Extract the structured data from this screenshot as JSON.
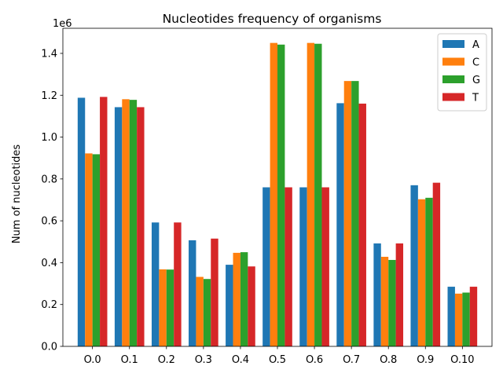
{
  "chart_data": {
    "type": "bar",
    "title": "Nucleotides frequency of organisms",
    "xlabel": "",
    "ylabel": "Num of nucleotides",
    "offset_label": "1e6",
    "categories": [
      "O.0",
      "O.1",
      "O.2",
      "O.3",
      "O.4",
      "O.5",
      "O.6",
      "O.7",
      "O.8",
      "O.9",
      "O.10"
    ],
    "ylim": [
      0,
      1520000
    ],
    "yticks": [
      0,
      200000,
      400000,
      600000,
      800000,
      1000000,
      1200000,
      1400000
    ],
    "ytick_labels": [
      "0.0",
      "0.2",
      "0.4",
      "0.6",
      "0.8",
      "1.0",
      "1.2",
      "1.4"
    ],
    "grid": false,
    "legend_position": "top-right",
    "series": [
      {
        "name": "A",
        "color": "#1f77b4",
        "values": [
          1188000,
          1143000,
          592000,
          507000,
          390000,
          760000,
          760000,
          1162000,
          492000,
          770000,
          285000
        ]
      },
      {
        "name": "C",
        "color": "#ff7f0e",
        "values": [
          922000,
          1181000,
          368000,
          332000,
          447000,
          1450000,
          1450000,
          1268000,
          428000,
          703000,
          252000
        ]
      },
      {
        "name": "G",
        "color": "#2ca02c",
        "values": [
          918000,
          1178000,
          367000,
          322000,
          450000,
          1442000,
          1446000,
          1268000,
          413000,
          710000,
          257000
        ]
      },
      {
        "name": "T",
        "color": "#d62728",
        "values": [
          1192000,
          1143000,
          592000,
          515000,
          382000,
          760000,
          760000,
          1160000,
          492000,
          782000,
          285000
        ]
      }
    ]
  }
}
